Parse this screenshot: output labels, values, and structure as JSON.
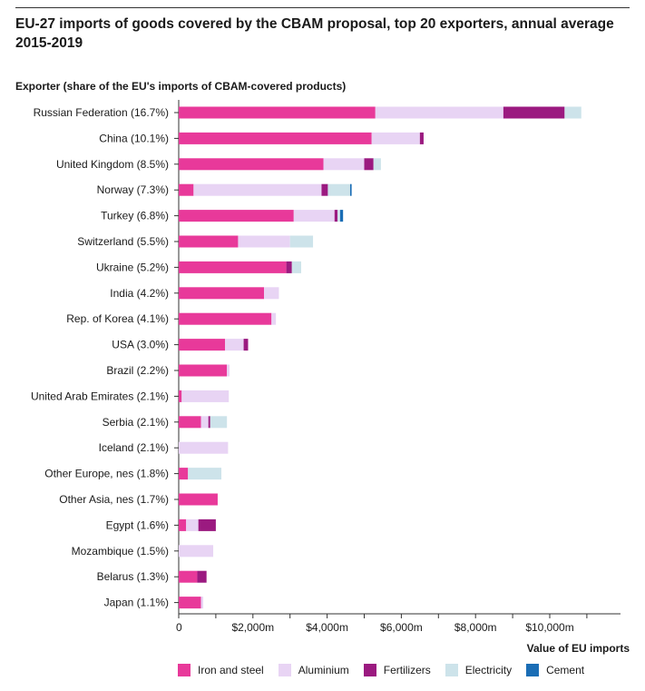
{
  "header": {
    "title": "EU-27 imports of goods covered by the CBAM proposal, top 20 exporters, annual average 2015-2019"
  },
  "chart_data": {
    "type": "bar",
    "orientation": "horizontal",
    "stacked": true,
    "title": "EU-27 imports of goods covered by the CBAM proposal, top 20 exporters, annual average 2015-2019",
    "ylabel": "Exporter (share of the EU's imports of CBAM-covered products)",
    "xlabel": "Value of EU imports",
    "xlim": [
      0,
      11500
    ],
    "xticks": [
      0,
      2000,
      4000,
      6000,
      8000,
      10000
    ],
    "xtick_labels": [
      "0",
      "$2,000m",
      "$4,000m",
      "$6,000m",
      "$8,000m",
      "$10,000m"
    ],
    "categories": [
      "Russian Federation (16.7%)",
      "China (10.1%)",
      "United Kingdom (8.5%)",
      "Norway (7.3%)",
      "Turkey (6.8%)",
      "Switzerland (5.5%)",
      "Ukraine (5.2%)",
      "India (4.2%)",
      "Rep. of Korea (4.1%)",
      "USA (3.0%)",
      "Brazil (2.2%)",
      "United Arab Emirates (2.1%)",
      "Serbia (2.1%)",
      "Iceland (2.1%)",
      "Other Europe, nes (1.8%)",
      "Other Asia, nes (1.7%)",
      "Egypt (1.6%)",
      "Mozambique (1.5%)",
      "Belarus (1.3%)",
      "Japan (1.1%)"
    ],
    "series": [
      {
        "name": "Iron and steel",
        "color": "#e8399a",
        "values": [
          5300,
          5200,
          3900,
          400,
          3100,
          1600,
          2900,
          2300,
          2500,
          1250,
          1300,
          80,
          600,
          0,
          250,
          1050,
          200,
          0,
          500,
          600
        ]
      },
      {
        "name": "Aluminium",
        "color": "#e8d4f4",
        "values": [
          3450,
          1300,
          1100,
          3450,
          1100,
          1400,
          0,
          400,
          120,
          500,
          70,
          1270,
          200,
          1330,
          0,
          0,
          330,
          930,
          0,
          60
        ]
      },
      {
        "name": "Fertilizers",
        "color": "#9b1a80",
        "values": [
          1650,
          100,
          250,
          170,
          80,
          0,
          150,
          0,
          0,
          120,
          0,
          0,
          50,
          0,
          0,
          0,
          470,
          0,
          250,
          0
        ]
      },
      {
        "name": "Electricity",
        "color": "#cde3ea",
        "values": [
          450,
          0,
          200,
          600,
          70,
          620,
          250,
          0,
          0,
          0,
          0,
          0,
          450,
          0,
          900,
          0,
          0,
          0,
          0,
          0
        ]
      },
      {
        "name": "Cement",
        "color": "#1a6db5",
        "values": [
          0,
          0,
          0,
          40,
          80,
          0,
          0,
          0,
          0,
          0,
          0,
          0,
          0,
          0,
          0,
          0,
          0,
          0,
          0,
          0
        ]
      }
    ],
    "legend_position": "bottom"
  }
}
